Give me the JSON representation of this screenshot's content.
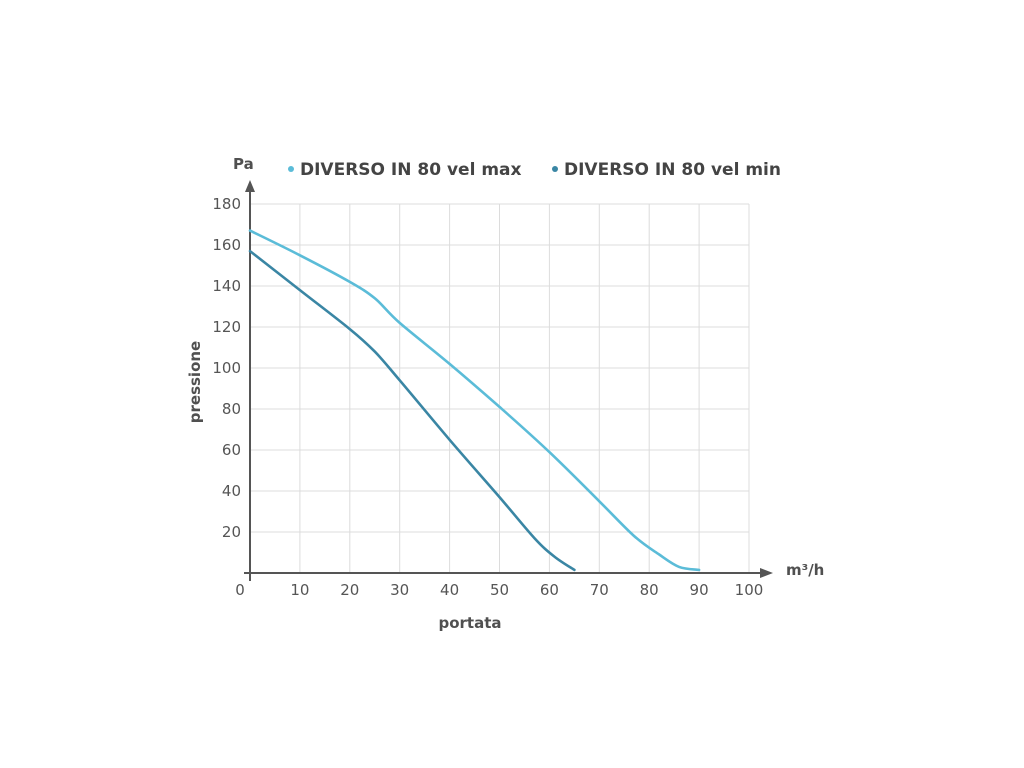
{
  "chart_data": {
    "type": "line",
    "title": "",
    "xlabel": "portata",
    "ylabel": "pressione",
    "x_unit": "m³/h",
    "y_unit": "Pa",
    "xlim": [
      0,
      100
    ],
    "ylim": [
      0,
      180
    ],
    "x_ticks": [
      "0",
      "10",
      "20",
      "30",
      "40",
      "50",
      "60",
      "70",
      "80",
      "90",
      "100"
    ],
    "y_ticks": [
      "20",
      "40",
      "60",
      "80",
      "100",
      "120",
      "140",
      "160",
      "180"
    ],
    "grid": true,
    "legend_position": "top",
    "series": [
      {
        "name": "DIVERSO IN 80 vel max",
        "color": "#5bbcd8",
        "points": [
          [
            0,
            167
          ],
          [
            10,
            155
          ],
          [
            20,
            142
          ],
          [
            25,
            134
          ],
          [
            30,
            122
          ],
          [
            40,
            102
          ],
          [
            50,
            81
          ],
          [
            60,
            59
          ],
          [
            70,
            35
          ],
          [
            77,
            18
          ],
          [
            82,
            9
          ],
          [
            86,
            3
          ],
          [
            90,
            1.5
          ]
        ]
      },
      {
        "name": "DIVERSO IN 80 vel min",
        "color": "#3a86a4",
        "points": [
          [
            0,
            157
          ],
          [
            10,
            138
          ],
          [
            20,
            119
          ],
          [
            25,
            108
          ],
          [
            30,
            94
          ],
          [
            40,
            65
          ],
          [
            50,
            37
          ],
          [
            57,
            17
          ],
          [
            61,
            8
          ],
          [
            65,
            1.5
          ]
        ]
      }
    ]
  }
}
